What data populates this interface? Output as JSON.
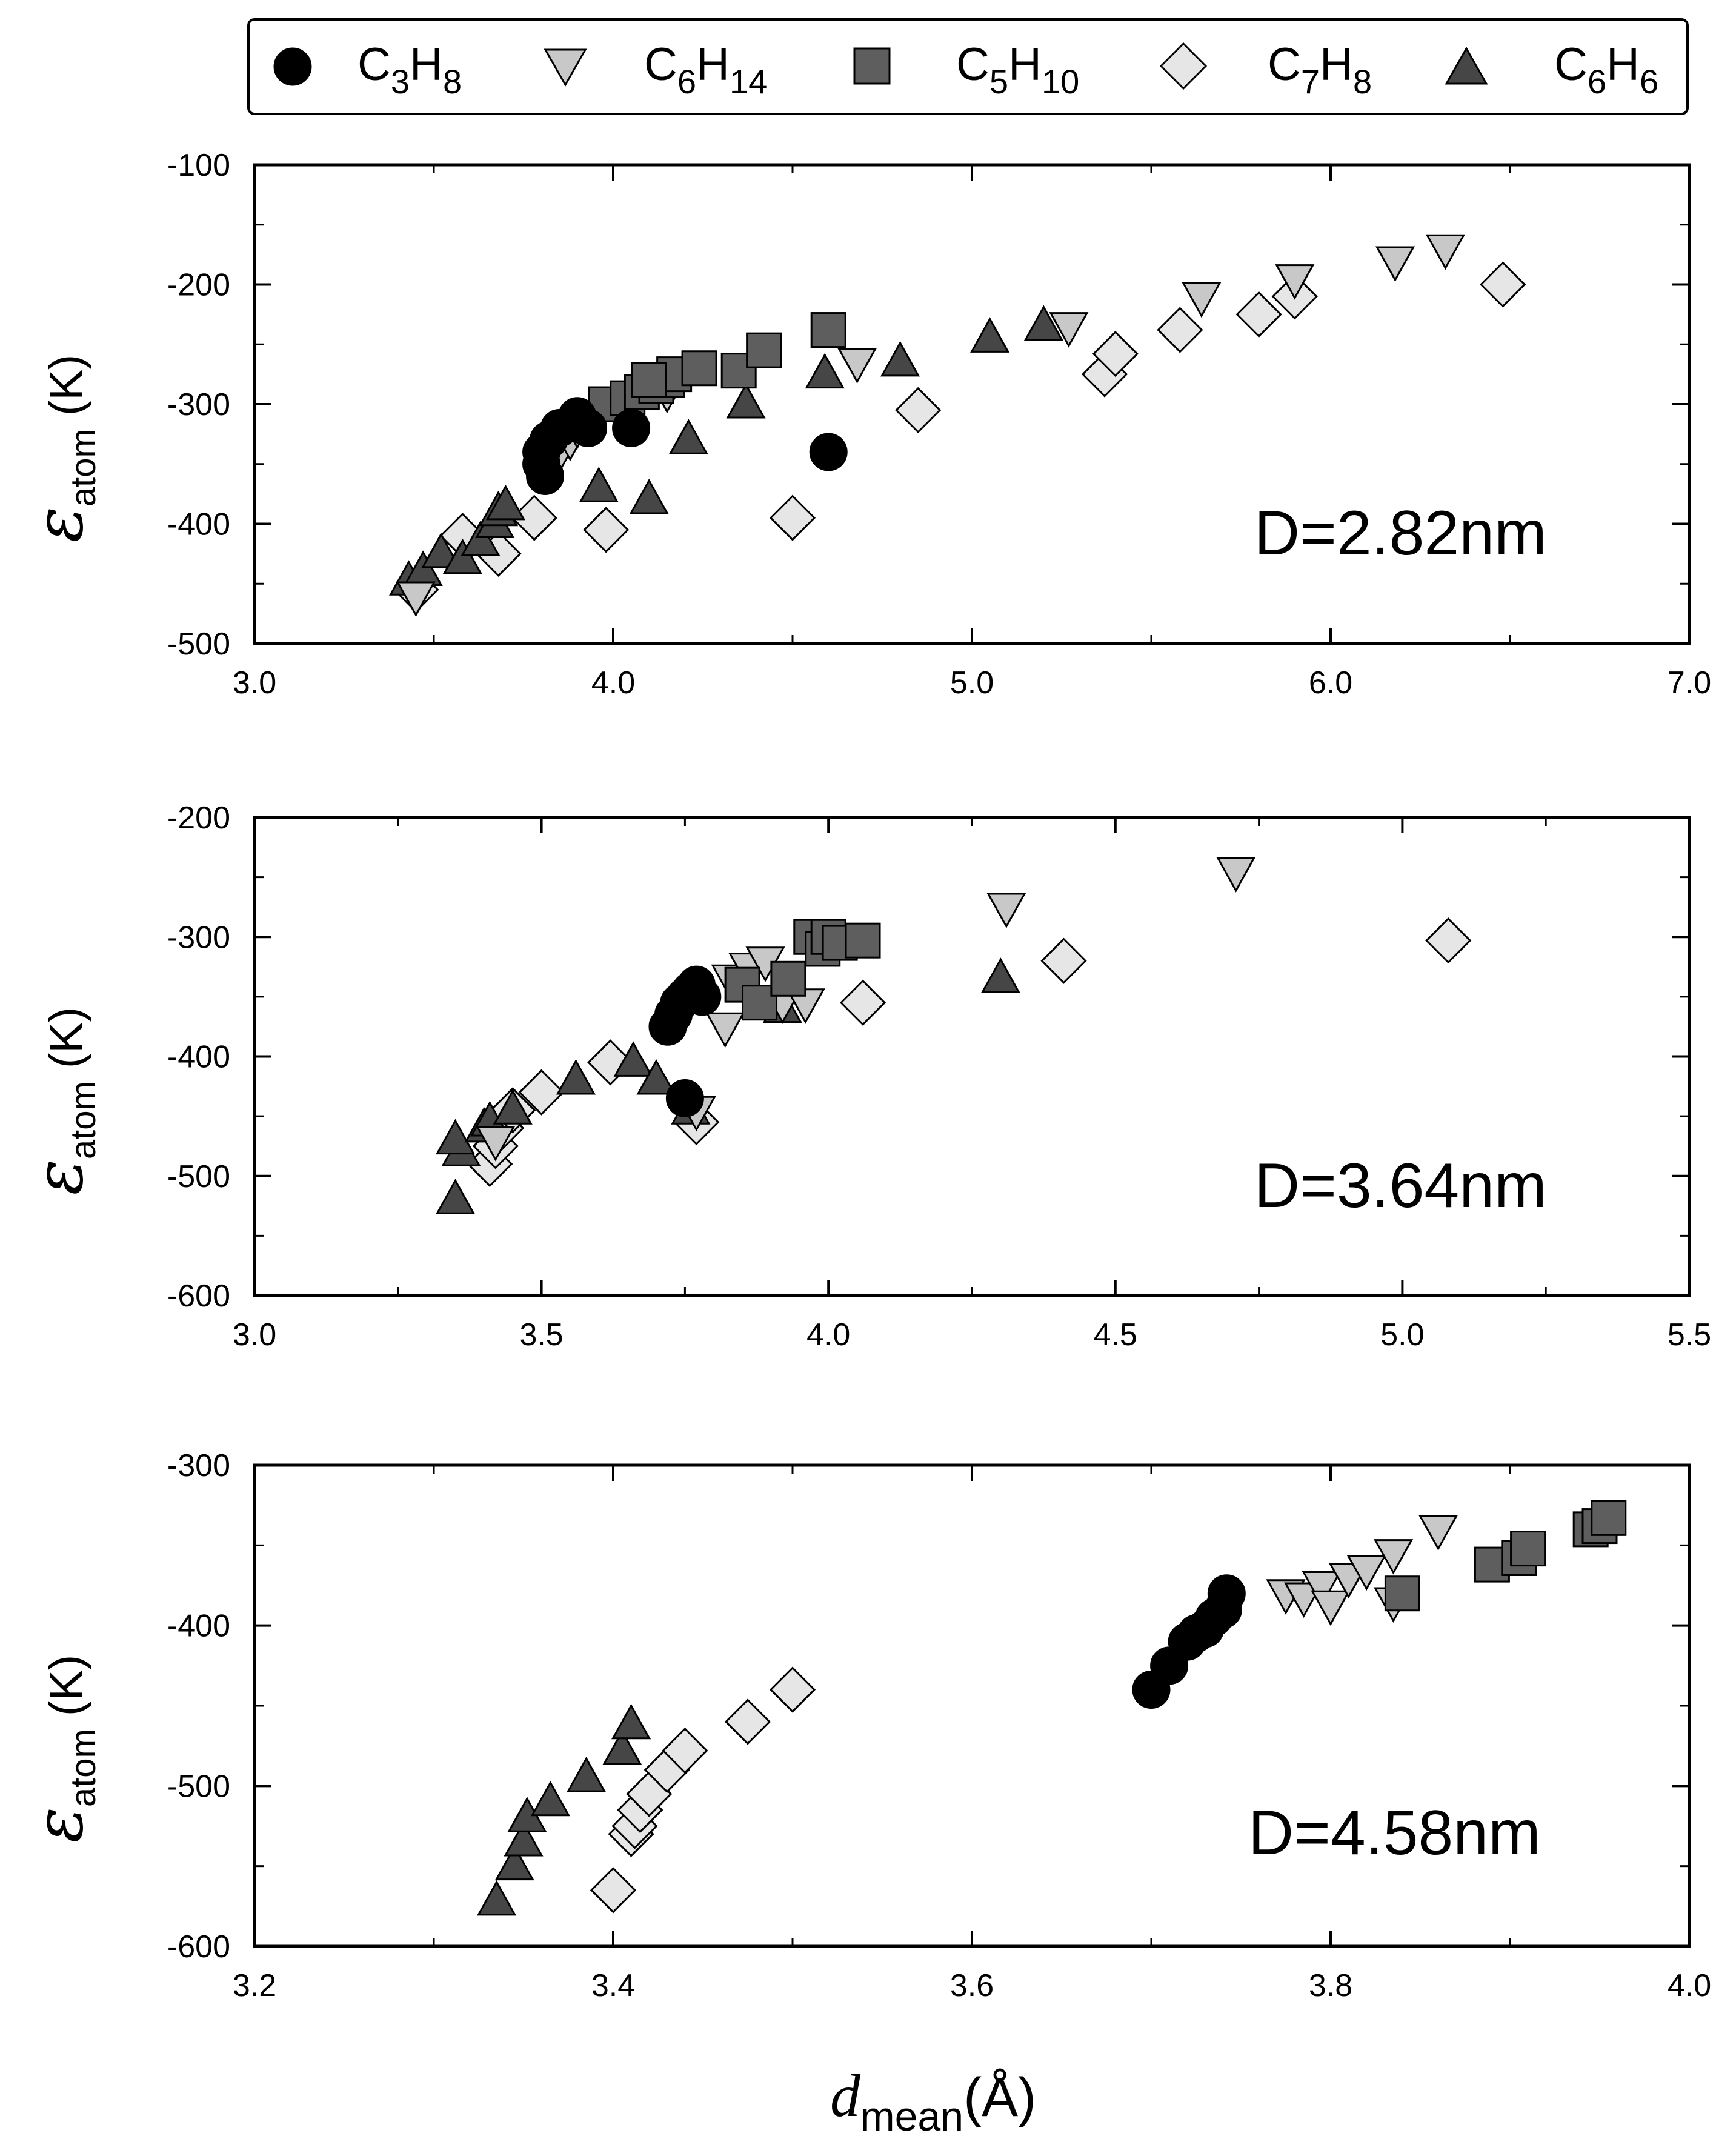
{
  "legend": {
    "entries": [
      {
        "key": "C3H8",
        "base1": "C",
        "sub1": "3",
        "base2": "H",
        "sub2": "8"
      },
      {
        "key": "C6H14",
        "base1": "C",
        "sub1": "6",
        "base2": "H",
        "sub2": "14"
      },
      {
        "key": "C5H10",
        "base1": "C",
        "sub1": "5",
        "base2": "H",
        "sub2": "10"
      },
      {
        "key": "C7H8",
        "base1": "C",
        "sub1": "7",
        "base2": "H",
        "sub2": "8"
      },
      {
        "key": "C6H6",
        "base1": "C",
        "sub1": "6",
        "base2": "H",
        "sub2": "6"
      }
    ]
  },
  "axis_labels": {
    "y_symbol": "ε",
    "y_sub": "atom",
    "y_unit": " (K)",
    "x_symbol": "d",
    "x_sub": "mean",
    "x_unit": "(Å)"
  },
  "styles": {
    "C3H8": {
      "marker": "circle",
      "fill": "#000000"
    },
    "C6H14": {
      "marker": "triangle-down",
      "fill": "#c8c8c8"
    },
    "C5H10": {
      "marker": "square",
      "fill": "#5e5e5e"
    },
    "C7H8": {
      "marker": "diamond",
      "fill": "#e6e6e6"
    },
    "C6H6": {
      "marker": "triangle-up",
      "fill": "#464646"
    }
  },
  "chart_data": [
    {
      "type": "scatter",
      "panel_label": "D=2.82nm",
      "xlim": [
        3.0,
        7.0
      ],
      "ylim": [
        -500,
        -100
      ],
      "xticks": [
        3.0,
        4.0,
        5.0,
        6.0,
        7.0
      ],
      "xtick_labels": [
        "3.0",
        "4.0",
        "5.0",
        "6.0",
        "7.0"
      ],
      "xminor": 0.5,
      "yticks": [
        -500,
        -400,
        -300,
        -200,
        -100
      ],
      "ytick_labels": [
        "-500",
        "-400",
        "-300",
        "-200",
        "-100"
      ],
      "yminor": 50,
      "series": [
        {
          "name": "C3H8",
          "x": [
            3.8,
            3.82,
            3.81,
            3.85,
            3.9,
            3.93,
            4.05,
            4.6,
            3.8
          ],
          "y": [
            -340,
            -330,
            -360,
            -320,
            -310,
            -320,
            -320,
            -340,
            -350
          ]
        },
        {
          "name": "C6H14",
          "x": [
            3.45,
            3.85,
            3.88,
            3.9,
            4.15,
            4.68,
            5.27,
            5.64,
            5.9,
            6.18,
            6.32
          ],
          "y": [
            -460,
            -340,
            -330,
            -320,
            -290,
            -265,
            -235,
            -210,
            -195,
            -180,
            -170
          ]
        },
        {
          "name": "C5H10",
          "x": [
            3.98,
            4.04,
            4.08,
            4.12,
            4.15,
            4.17,
            4.24,
            4.35,
            4.42,
            4.6,
            4.1
          ],
          "y": [
            -300,
            -295,
            -290,
            -285,
            -280,
            -275,
            -270,
            -272,
            -255,
            -238,
            -280
          ]
        },
        {
          "name": "C7H8",
          "x": [
            3.45,
            3.58,
            3.68,
            3.78,
            3.98,
            4.5,
            4.85,
            5.37,
            5.4,
            5.58,
            5.8,
            5.9,
            6.48
          ],
          "y": [
            -455,
            -410,
            -425,
            -395,
            -405,
            -395,
            -305,
            -275,
            -258,
            -238,
            -225,
            -210,
            -200
          ]
        },
        {
          "name": "C6H6",
          "x": [
            3.43,
            3.47,
            3.52,
            3.58,
            3.63,
            3.67,
            3.68,
            3.7,
            3.96,
            4.1,
            4.21,
            4.37,
            4.59,
            4.8,
            5.05,
            5.2
          ],
          "y": [
            -448,
            -440,
            -425,
            -430,
            -415,
            -400,
            -390,
            -385,
            -370,
            -380,
            -330,
            -300,
            -275,
            -265,
            -245,
            -235
          ]
        }
      ]
    },
    {
      "type": "scatter",
      "panel_label": "D=3.64nm",
      "xlim": [
        3.0,
        5.5
      ],
      "ylim": [
        -600,
        -200
      ],
      "xticks": [
        3.0,
        3.5,
        4.0,
        4.5,
        5.0,
        5.5
      ],
      "xtick_labels": [
        "3.0",
        "3.5",
        "4.0",
        "4.5",
        "5.0",
        "5.5"
      ],
      "xminor": 0.25,
      "yticks": [
        -600,
        -500,
        -400,
        -300,
        -200
      ],
      "ytick_labels": [
        "-600",
        "-500",
        "-400",
        "-300",
        "-200"
      ],
      "yminor": 50,
      "series": [
        {
          "name": "C3H8",
          "x": [
            3.72,
            3.73,
            3.74,
            3.75,
            3.76,
            3.77,
            3.78,
            3.75
          ],
          "y": [
            -375,
            -365,
            -355,
            -350,
            -345,
            -340,
            -350,
            -435
          ]
        },
        {
          "name": "C6H14",
          "x": [
            3.42,
            3.82,
            3.83,
            3.86,
            3.89,
            3.92,
            3.96,
            3.98,
            4.31,
            4.71,
            3.77
          ],
          "y": [
            -470,
            -375,
            -335,
            -325,
            -320,
            -355,
            -355,
            -300,
            -275,
            -245,
            -445
          ]
        },
        {
          "name": "C5H10",
          "x": [
            3.85,
            3.88,
            3.93,
            3.97,
            3.99,
            4.0,
            4.02,
            4.06
          ],
          "y": [
            -340,
            -355,
            -335,
            -300,
            -310,
            -300,
            -305,
            -303
          ]
        },
        {
          "name": "C7H8",
          "x": [
            3.41,
            3.42,
            3.43,
            3.45,
            3.5,
            3.62,
            3.77,
            4.06,
            4.41,
            5.08
          ],
          "y": [
            -490,
            -475,
            -460,
            -445,
            -430,
            -405,
            -455,
            -355,
            -320,
            -303
          ]
        },
        {
          "name": "C6H6",
          "x": [
            3.35,
            3.36,
            3.35,
            3.4,
            3.41,
            3.45,
            3.56,
            3.66,
            3.7,
            3.76,
            3.92,
            4.3
          ],
          "y": [
            -520,
            -480,
            -470,
            -460,
            -455,
            -445,
            -420,
            -405,
            -420,
            -445,
            -360,
            -335
          ]
        }
      ]
    },
    {
      "type": "scatter",
      "panel_label": "D=4.58nm",
      "xlim": [
        3.2,
        4.0
      ],
      "ylim": [
        -600,
        -300
      ],
      "xticks": [
        3.2,
        3.4,
        3.6,
        3.8,
        4.0
      ],
      "xtick_labels": [
        "3.2",
        "3.4",
        "3.6",
        "3.8",
        "4.0"
      ],
      "xminor": 0.1,
      "yticks": [
        -600,
        -500,
        -400,
        -300
      ],
      "ytick_labels": [
        "-600",
        "-500",
        "-400",
        "-300"
      ],
      "yminor": 50,
      "series": [
        {
          "name": "C3H8",
          "x": [
            3.7,
            3.71,
            3.72,
            3.725,
            3.73,
            3.735,
            3.74,
            3.742
          ],
          "y": [
            -440,
            -425,
            -410,
            -405,
            -402,
            -395,
            -390,
            -380
          ]
        },
        {
          "name": "C6H14",
          "x": [
            3.775,
            3.785,
            3.795,
            3.8,
            3.81,
            3.82,
            3.835,
            3.835,
            3.86
          ],
          "y": [
            -380,
            -382,
            -375,
            -387,
            -370,
            -365,
            -355,
            -385,
            -340
          ]
        },
        {
          "name": "C5H10",
          "x": [
            3.84,
            3.89,
            3.905,
            3.91,
            3.945,
            3.95,
            3.955
          ],
          "y": [
            -380,
            -362,
            -358,
            -352,
            -340,
            -338,
            -333
          ]
        },
        {
          "name": "C7H8",
          "x": [
            3.4,
            3.41,
            3.412,
            3.415,
            3.42,
            3.43,
            3.44,
            3.475,
            3.5
          ],
          "y": [
            -565,
            -530,
            -525,
            -515,
            -505,
            -490,
            -478,
            -460,
            -440
          ]
        },
        {
          "name": "C6H6",
          "x": [
            3.335,
            3.345,
            3.35,
            3.352,
            3.365,
            3.385,
            3.405,
            3.41
          ],
          "y": [
            -572,
            -550,
            -535,
            -520,
            -510,
            -495,
            -478,
            -462
          ]
        }
      ]
    }
  ]
}
